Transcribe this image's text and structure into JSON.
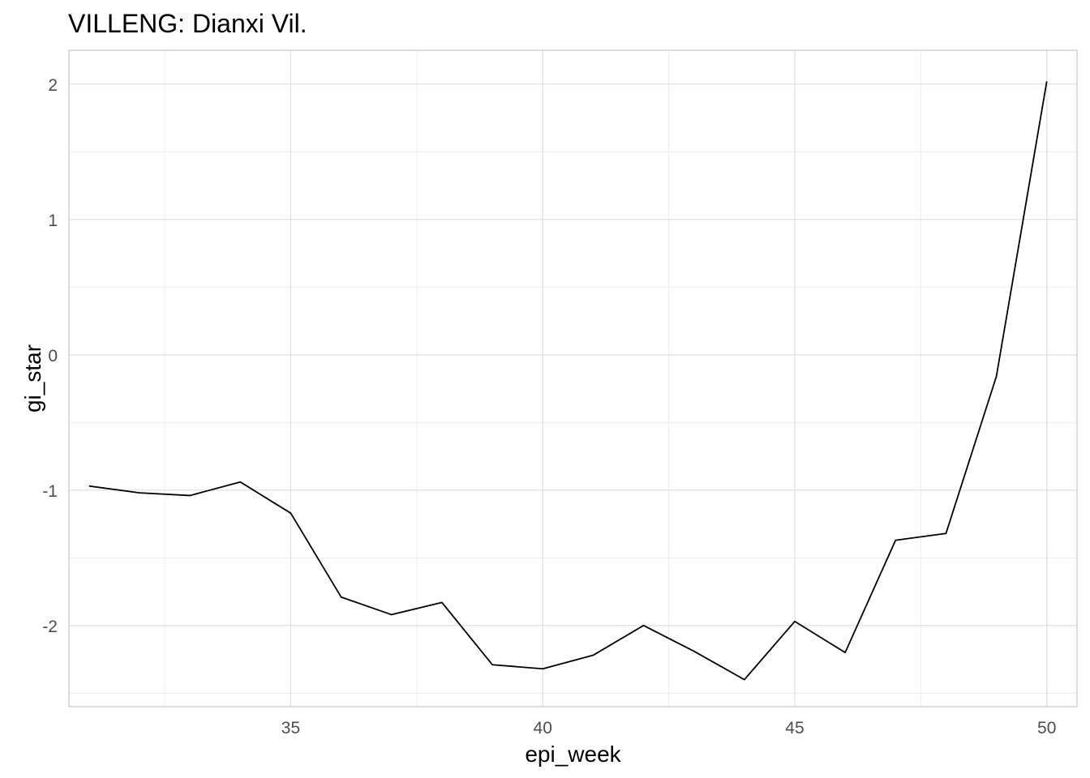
{
  "chart_data": {
    "type": "line",
    "title": "VILLENG: Dianxi Vil.",
    "xlabel": "epi_week",
    "ylabel": "gi_star",
    "xlim": [
      30.6,
      50.6
    ],
    "ylim": [
      -2.6,
      2.25
    ],
    "x_ticks": [
      35,
      40,
      45,
      50
    ],
    "y_ticks": [
      -2,
      -1,
      0,
      1,
      2
    ],
    "x_tick_labels": [
      "35",
      "40",
      "45",
      "50"
    ],
    "y_tick_labels": [
      "-2",
      "-1",
      "0",
      "1",
      "2"
    ],
    "grid": true,
    "legend": "none",
    "line_color": "#000000",
    "x": [
      31,
      32,
      33,
      34,
      35,
      36,
      37,
      38,
      39,
      40,
      41,
      42,
      43,
      44,
      45,
      46,
      47,
      48,
      49,
      50
    ],
    "values": [
      -0.97,
      -1.02,
      -1.04,
      -0.94,
      -1.17,
      -1.79,
      -1.92,
      -1.83,
      -2.29,
      -2.32,
      -2.22,
      -2.0,
      -2.19,
      -2.4,
      -1.97,
      -2.2,
      -1.37,
      -1.32,
      -0.16,
      2.02
    ]
  }
}
